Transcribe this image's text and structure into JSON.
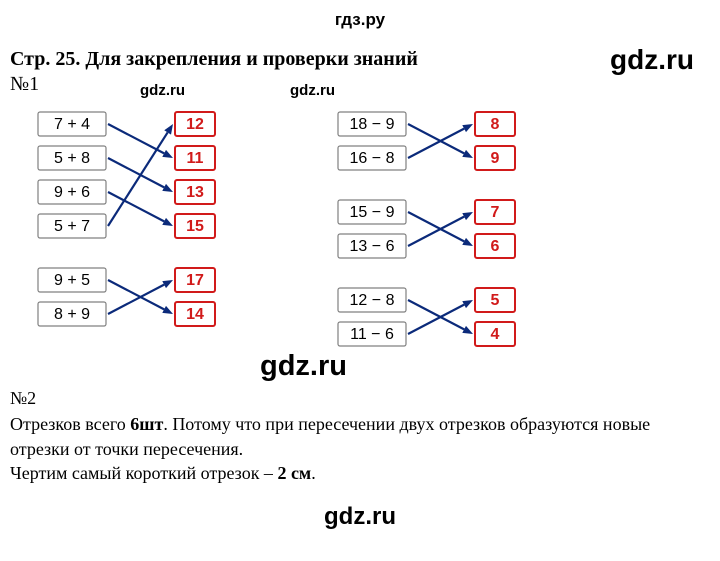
{
  "site_title": "гдз.ру",
  "heading": "Стр. 25. Для закрепления и проверки знаний",
  "n1_label": "№1",
  "n2_label": "№2",
  "n2_line1_a": "Отрезков всего ",
  "n2_line1_b": "6шт",
  "n2_line1_c": ". Потому что при пересечении двух отрезков образуются новые",
  "n2_line2": "отрезки от точки пересечения.",
  "n2_line3_a": "Чертим самый короткий отрезок – ",
  "n2_line3_b": "2 см",
  "n2_line3_c": ".",
  "watermark_text": "gdz.ru",
  "chart_styling": {
    "left_box": {
      "w": 68,
      "h": 24,
      "stroke": "#808080",
      "fill": "#ffffff"
    },
    "right_box": {
      "w": 40,
      "h": 24,
      "stroke": "#d11a1a",
      "fill": "#ffffff",
      "text_color": "#d11a1a"
    },
    "arrow_color": "#0b2a7a",
    "arrow_width": 2.2,
    "left_font_size": 16,
    "right_font_size": 16,
    "row_spacing_group": 34,
    "group_gap": 20
  },
  "chart_left": {
    "groups": [
      {
        "left": [
          "7 + 4",
          "5 + 8",
          "9 + 6",
          "5 + 7"
        ],
        "right": [
          "12",
          "11",
          "13",
          "15"
        ],
        "cross": [
          [
            0,
            2
          ],
          [
            1,
            3
          ],
          [
            2,
            4
          ],
          [
            3,
            1
          ]
        ],
        "map": {
          "0": 1,
          "1": 2,
          "2": 3,
          "3": 0
        }
      },
      {
        "left": [
          "9 + 5",
          "8 + 9"
        ],
        "right": [
          "17",
          "14"
        ],
        "map": {
          "0": 1,
          "1": 0
        }
      }
    ]
  },
  "chart_right": {
    "groups": [
      {
        "left": [
          "18 − 9",
          "16 − 8"
        ],
        "right": [
          "8",
          "9"
        ],
        "map": {
          "0": 1,
          "1": 0
        }
      },
      {
        "left": [
          "15 − 9",
          "13 − 6"
        ],
        "right": [
          "7",
          "6"
        ],
        "map": {
          "0": 1,
          "1": 0
        }
      },
      {
        "left": [
          "12 − 8",
          "11 − 6"
        ],
        "right": [
          "5",
          "4"
        ],
        "map": {
          "0": 1,
          "1": 0
        }
      }
    ]
  }
}
